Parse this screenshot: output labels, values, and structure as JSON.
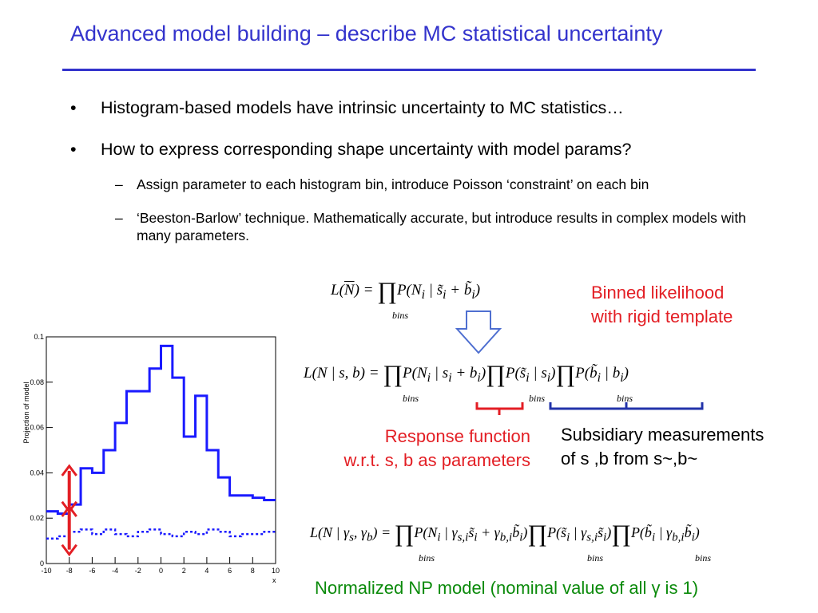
{
  "slide": {
    "title": "Advanced model building – describe MC statistical uncertainty",
    "bullets": [
      "Histogram-based models have intrinsic uncertainty to MC statistics…",
      "How to express corresponding shape uncertainty with model params?"
    ],
    "bullet_marker": "•",
    "sub_marker": "–",
    "sub_bullets": [
      "Assign parameter to each histogram bin, introduce Poisson ‘constraint’ on each bin",
      "‘Beeston-Barlow’ technique. Mathematically accurate, but introduce results in complex models with many parameters."
    ],
    "formulas": {
      "binned_likelihood": "L(N⃗) = ∏_bins P(N_i | s̃_i + b̃_i)",
      "beeston_barlow": "L(N⃗ | s⃗, b⃗) = ∏_bins P(N_i | s_i + b_i) ∏_bins P(s̃_i | s_i) ∏_bins P(b̃_i | b_i)",
      "normalized_np": "L(N⃗ | γ⃗_s, γ⃗_b) = ∏_bins P(N_i | γ_s,i s̃_i + γ_b,i b̃_i) ∏_bins P(s̃_i | γ_s,i s̃_i) ∏_bins P(b̃_i | γ_b,i b̃_i)",
      "bins_label": "bins"
    },
    "annotations": {
      "binned_line1": "Binned likelihood",
      "binned_line2": "with rigid template",
      "response_line1": "Response function",
      "response_line2": "w.r.t. s, b as parameters",
      "subsidiary_line1": "Subsidiary measurements",
      "subsidiary_line2": "of s ,b from s~,b~",
      "normalized": "Normalized NP model (nominal value of all γ is 1)"
    },
    "colors": {
      "title": "#3333cc",
      "red_annotation": "#e31e24",
      "green_annotation": "#0a8a0a",
      "bracket_blue": "#2233aa",
      "arrow_outline": "#4f6fd0"
    }
  },
  "chart_data": {
    "type": "line",
    "ylabel": "Projection of model",
    "xlabel": "x",
    "xlim": [
      -10,
      10
    ],
    "ylim": [
      0,
      0.1
    ],
    "x_ticks": [
      -10,
      -8,
      -6,
      -4,
      -2,
      0,
      2,
      4,
      6,
      8,
      10
    ],
    "y_ticks": [
      0,
      0.02,
      0.04,
      0.06,
      0.08,
      0.1
    ],
    "x_tick_labels": [
      "-10",
      "-8",
      "-6",
      "-4",
      "-2",
      "0",
      "2",
      "4",
      "6",
      "8",
      "10"
    ],
    "y_tick_labels": [
      "0",
      "0.02",
      "0.04",
      "0.06",
      "0.08",
      "0.1"
    ],
    "series": [
      {
        "style": "solid",
        "color": "#1a1aff",
        "bin_edges": [
          -10,
          -9,
          -8,
          -7,
          -6,
          -5,
          -4,
          -3,
          -2,
          -1,
          0,
          1,
          2,
          3,
          4,
          5,
          6,
          7,
          8,
          9,
          10
        ],
        "values": [
          0.023,
          0.022,
          0.026,
          0.042,
          0.04,
          0.05,
          0.062,
          0.076,
          0.076,
          0.086,
          0.096,
          0.082,
          0.056,
          0.074,
          0.05,
          0.038,
          0.03,
          0.03,
          0.029,
          0.028
        ]
      },
      {
        "style": "dotted",
        "color": "#1a1aff",
        "bin_edges": [
          -10,
          -9,
          -8,
          -7,
          -6,
          -5,
          -4,
          -3,
          -2,
          -1,
          0,
          1,
          2,
          3,
          4,
          5,
          6,
          7,
          8,
          9,
          10
        ],
        "values": [
          0.011,
          0.012,
          0.014,
          0.015,
          0.013,
          0.015,
          0.013,
          0.012,
          0.014,
          0.015,
          0.013,
          0.012,
          0.014,
          0.013,
          0.015,
          0.014,
          0.012,
          0.013,
          0.013,
          0.014
        ]
      }
    ],
    "annotations": [
      {
        "type": "double-arrow",
        "x": -8,
        "y_from": 0.043,
        "y_to": 0.023,
        "color": "#e31e24"
      },
      {
        "type": "double-arrow",
        "x": -8,
        "y_from": 0.025,
        "y_to": 0.004,
        "color": "#e31e24"
      }
    ]
  }
}
